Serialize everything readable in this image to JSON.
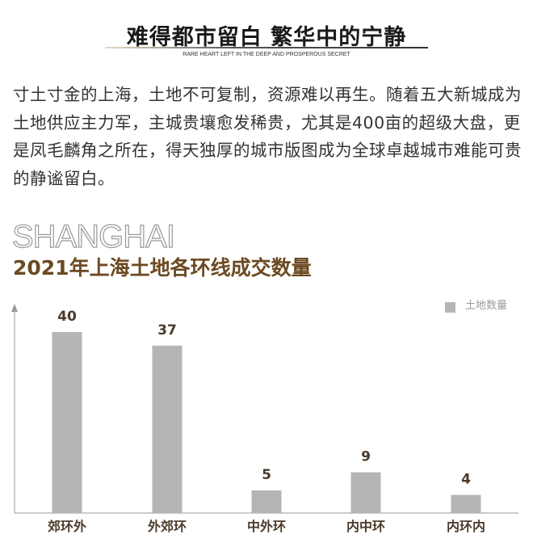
{
  "header": {
    "title": "难得都市留白 繁华中的宁静",
    "subtitle": "RARE HEART LEFT IN THE DEEP AND PROSPEROUS SECRET"
  },
  "paragraph": "寸土寸金的上海，土地不可复制，资源难以再生。随着五大新城成为土地供应主力军，主城贵壤愈发稀贵，尤其是400亩的超级大盘，更是凤毛麟角之所在，得天独厚的城市版图成为全球卓越城市难能可贵的静谧留白。",
  "decor_word": "SHANGHAI",
  "chart_data": {
    "type": "bar",
    "title": "2021年上海土地各环线成交数量",
    "categories": [
      "郊环外",
      "外郊环",
      "中外环",
      "内中环",
      "内环内"
    ],
    "series": [
      {
        "name": "土地数量",
        "values": [
          40,
          37,
          5,
          9,
          4
        ]
      }
    ],
    "ylim": [
      0,
      45
    ],
    "grid": false,
    "legend": "top-right",
    "colors": {
      "bar": "#b5b5b6",
      "label": "#4a3a2a",
      "title": "#6b4a22"
    }
  }
}
